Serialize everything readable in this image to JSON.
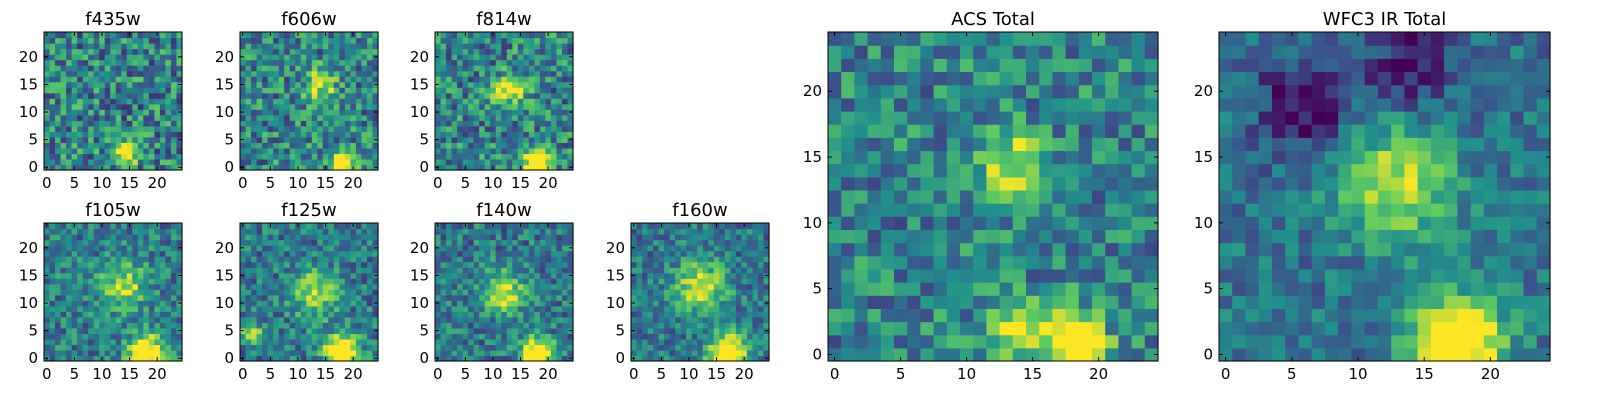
{
  "colormap": [
    "#440154",
    "#3b528b",
    "#21918c",
    "#5ec962",
    "#fde725"
  ],
  "chart_data": [
    {
      "type": "heatmap",
      "title": "f435w",
      "x_ticks": [
        "0",
        "5",
        "10",
        "15",
        "20"
      ],
      "y_ticks": [
        "0",
        "5",
        "10",
        "15",
        "20"
      ],
      "xlim": [
        -0.5,
        24.5
      ],
      "ylim": [
        -0.5,
        24.5
      ],
      "grid_size": [
        25,
        25
      ],
      "noise": 0.3,
      "base": 0.45,
      "sources": [
        {
          "x": 14.5,
          "y": 2.5,
          "amp": 0.9,
          "sigma": 1.3
        }
      ]
    },
    {
      "type": "heatmap",
      "title": "f606w",
      "x_ticks": [
        "0",
        "5",
        "10",
        "15",
        "20"
      ],
      "y_ticks": [
        "0",
        "5",
        "10",
        "15",
        "20"
      ],
      "xlim": [
        -0.5,
        24.5
      ],
      "ylim": [
        -0.5,
        24.5
      ],
      "grid_size": [
        25,
        25
      ],
      "noise": 0.28,
      "base": 0.45,
      "sources": [
        {
          "x": 18,
          "y": 1,
          "amp": 0.9,
          "sigma": 1.5
        },
        {
          "x": 14,
          "y": 15,
          "amp": 0.45,
          "sigma": 2.0
        }
      ]
    },
    {
      "type": "heatmap",
      "title": "f814w",
      "x_ticks": [
        "0",
        "5",
        "10",
        "15",
        "20"
      ],
      "y_ticks": [
        "0",
        "5",
        "10",
        "15",
        "20"
      ],
      "xlim": [
        -0.5,
        24.5
      ],
      "ylim": [
        -0.5,
        24.5
      ],
      "grid_size": [
        25,
        25
      ],
      "noise": 0.28,
      "base": 0.45,
      "sources": [
        {
          "x": 18,
          "y": 1,
          "amp": 1.0,
          "sigma": 1.5
        },
        {
          "x": 13,
          "y": 14,
          "amp": 0.5,
          "sigma": 2.0
        }
      ]
    },
    {
      "type": "heatmap",
      "title": "f105w",
      "x_ticks": [
        "0",
        "5",
        "10",
        "15",
        "20"
      ],
      "y_ticks": [
        "0",
        "5",
        "10",
        "15",
        "20"
      ],
      "xlim": [
        -0.5,
        24.5
      ],
      "ylim": [
        -0.5,
        24.5
      ],
      "grid_size": [
        25,
        25
      ],
      "noise": 0.22,
      "base": 0.42,
      "sources": [
        {
          "x": 18,
          "y": 1,
          "amp": 0.9,
          "sigma": 2.2
        },
        {
          "x": 14,
          "y": 13,
          "amp": 0.45,
          "sigma": 3.0
        }
      ]
    },
    {
      "type": "heatmap",
      "title": "f125w",
      "x_ticks": [
        "0",
        "5",
        "10",
        "15",
        "20"
      ],
      "y_ticks": [
        "0",
        "5",
        "10",
        "15",
        "20"
      ],
      "xlim": [
        -0.5,
        24.5
      ],
      "ylim": [
        -0.5,
        24.5
      ],
      "grid_size": [
        25,
        25
      ],
      "noise": 0.22,
      "base": 0.4,
      "sources": [
        {
          "x": 18,
          "y": 1,
          "amp": 0.9,
          "sigma": 2.2
        },
        {
          "x": 13,
          "y": 12,
          "amp": 0.5,
          "sigma": 3.0
        },
        {
          "x": 1.5,
          "y": 4.5,
          "amp": 0.6,
          "sigma": 1.2
        }
      ]
    },
    {
      "type": "heatmap",
      "title": "f140w",
      "x_ticks": [
        "0",
        "5",
        "10",
        "15",
        "20"
      ],
      "y_ticks": [
        "0",
        "5",
        "10",
        "15",
        "20"
      ],
      "xlim": [
        -0.5,
        24.5
      ],
      "ylim": [
        -0.5,
        24.5
      ],
      "grid_size": [
        25,
        25
      ],
      "noise": 0.22,
      "base": 0.4,
      "sources": [
        {
          "x": 18,
          "y": 1,
          "amp": 0.9,
          "sigma": 2.0
        },
        {
          "x": 12,
          "y": 12,
          "amp": 0.55,
          "sigma": 2.6
        }
      ]
    },
    {
      "type": "heatmap",
      "title": "f160w",
      "x_ticks": [
        "0",
        "5",
        "10",
        "15",
        "20"
      ],
      "y_ticks": [
        "0",
        "5",
        "10",
        "15",
        "20"
      ],
      "xlim": [
        -0.5,
        24.5
      ],
      "ylim": [
        -0.5,
        24.5
      ],
      "grid_size": [
        25,
        25
      ],
      "noise": 0.2,
      "base": 0.4,
      "sources": [
        {
          "x": 17,
          "y": 1,
          "amp": 0.9,
          "sigma": 2.4
        },
        {
          "x": 12,
          "y": 13,
          "amp": 0.55,
          "sigma": 3.2
        }
      ]
    },
    {
      "type": "heatmap",
      "title": "ACS Total",
      "x_ticks": [
        "0",
        "5",
        "10",
        "15",
        "20"
      ],
      "y_ticks": [
        "0",
        "5",
        "10",
        "15",
        "20"
      ],
      "xlim": [
        -0.5,
        24.5
      ],
      "ylim": [
        -0.5,
        24.5
      ],
      "grid_size": [
        25,
        25
      ],
      "noise": 0.24,
      "base": 0.45,
      "sources": [
        {
          "x": 18,
          "y": 1,
          "amp": 0.95,
          "sigma": 1.6
        },
        {
          "x": 13.5,
          "y": 2,
          "amp": 0.6,
          "sigma": 1.3
        },
        {
          "x": 13.5,
          "y": 14.5,
          "amp": 0.5,
          "sigma": 1.8
        }
      ]
    },
    {
      "type": "heatmap",
      "title": "WFC3 IR Total",
      "x_ticks": [
        "0",
        "5",
        "10",
        "15",
        "20"
      ],
      "y_ticks": [
        "0",
        "5",
        "10",
        "15",
        "20"
      ],
      "xlim": [
        -0.5,
        24.5
      ],
      "ylim": [
        -0.5,
        24.5
      ],
      "grid_size": [
        25,
        25
      ],
      "noise": 0.16,
      "base": 0.38,
      "sources": [
        {
          "x": 17.5,
          "y": 1,
          "amp": 0.95,
          "sigma": 2.4
        },
        {
          "x": 13,
          "y": 13,
          "amp": 0.55,
          "sigma": 3.0
        },
        {
          "x": 6,
          "y": 19,
          "amp": -0.35,
          "sigma": 2.5
        },
        {
          "x": 14,
          "y": 22,
          "amp": -0.3,
          "sigma": 2.5
        }
      ]
    }
  ]
}
